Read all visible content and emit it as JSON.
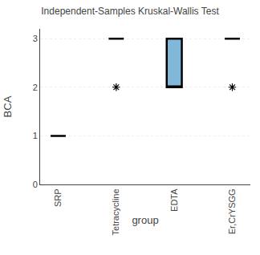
{
  "chart_data": {
    "type": "box",
    "title": "Independent-Samples Kruskal-Wallis Test",
    "xlabel": "group",
    "ylabel": "BCA",
    "categories": [
      "SRP",
      "Tetracycline",
      "EDTA",
      "Er,CrYSGG"
    ],
    "q1": [
      1.0,
      3.0,
      2.0,
      3.0
    ],
    "median": [
      1.0,
      3.0,
      2.0,
      3.0
    ],
    "q3": [
      1.0,
      3.0,
      3.0,
      3.0
    ],
    "outliers": [
      null,
      2.0,
      null,
      2.0
    ],
    "marker": "asterisk",
    "color": "#7fb8d8",
    "ylim": [
      0,
      3.2
    ],
    "yticks": [
      0,
      1,
      2,
      3
    ],
    "grid": true
  }
}
